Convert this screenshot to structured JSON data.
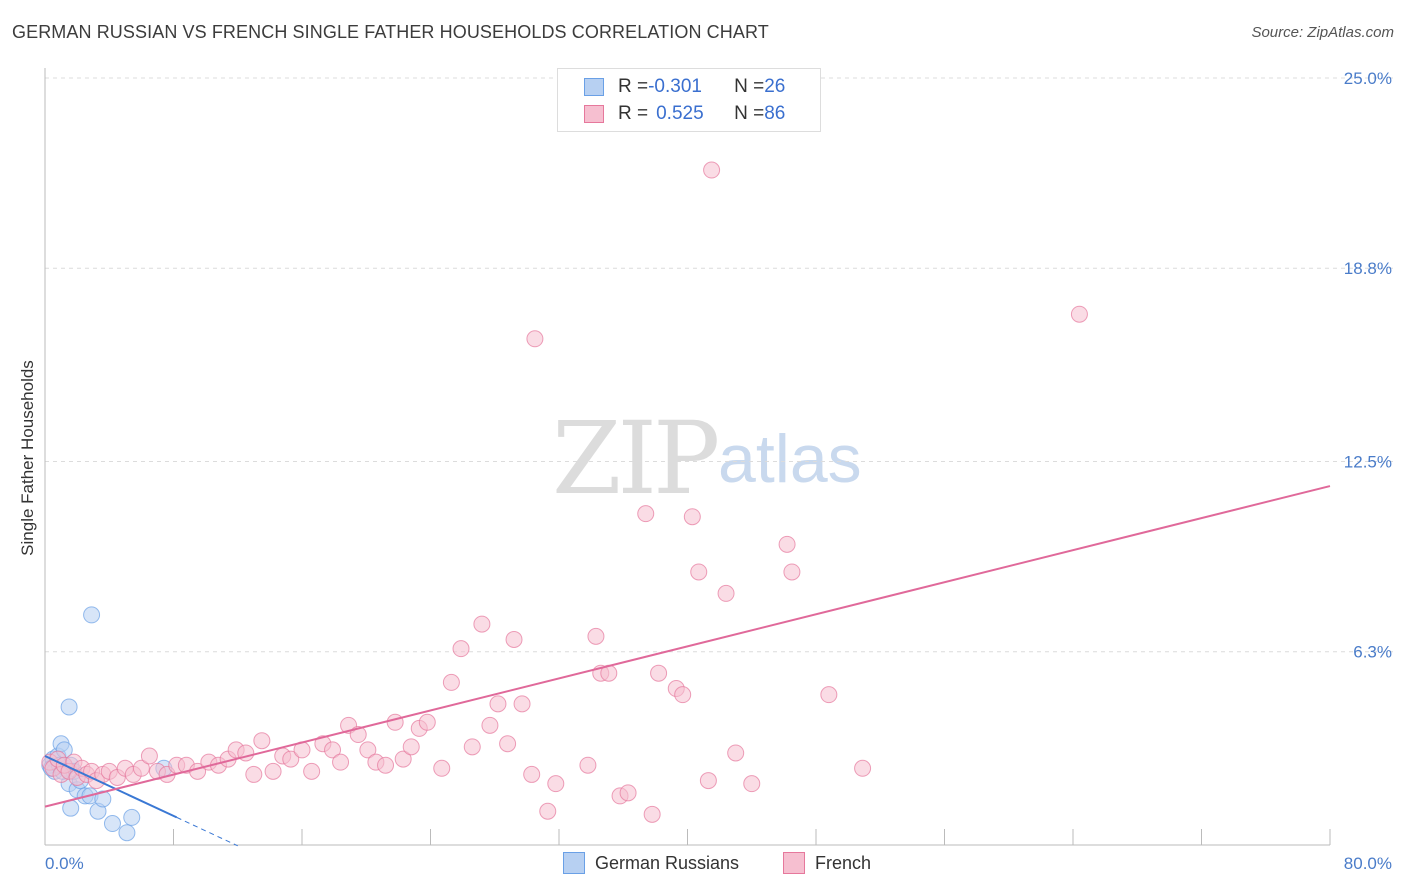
{
  "chart_data": {
    "type": "scatter",
    "title": "GERMAN RUSSIAN VS FRENCH SINGLE FATHER HOUSEHOLDS CORRELATION CHART",
    "source": "Source: ZipAtlas.com",
    "xlabel": "",
    "ylabel": "Single Father Households",
    "xlim": [
      0,
      80
    ],
    "ylim": [
      0,
      25
    ],
    "x_tick_labels": [
      "0.0%",
      "80.0%"
    ],
    "y_ticks": [
      6.3,
      12.5,
      18.8,
      25.0
    ],
    "y_tick_labels": [
      "6.3%",
      "12.5%",
      "18.8%",
      "25.0%"
    ],
    "grid": true,
    "watermark": {
      "zip": "ZIP",
      "atlas": "atlas"
    },
    "legend": [
      {
        "r_label": "R = ",
        "r_value": "-0.301",
        "n_label": "N = ",
        "n_value": "26"
      },
      {
        "r_label": "R = ",
        "r_value": "0.525",
        "n_label": "N = ",
        "n_value": "86"
      }
    ],
    "series": [
      {
        "name": "German Russians",
        "color": "#6aa0e6",
        "fill": "#b7d0f2",
        "trend": {
          "x0": 0.0,
          "y0": 2.9,
          "x1": 8.2,
          "y1": 0.9,
          "dash_to_x": 12.0
        },
        "points": [
          [
            0.3,
            2.6
          ],
          [
            0.5,
            2.8
          ],
          [
            0.6,
            2.4
          ],
          [
            0.8,
            2.9
          ],
          [
            1.0,
            3.3
          ],
          [
            1.2,
            3.1
          ],
          [
            1.3,
            2.5
          ],
          [
            1.5,
            2.0
          ],
          [
            1.6,
            2.6
          ],
          [
            1.8,
            2.4
          ],
          [
            2.0,
            1.8
          ],
          [
            2.2,
            2.1
          ],
          [
            2.5,
            1.6
          ],
          [
            2.8,
            1.6
          ],
          [
            3.3,
            1.1
          ],
          [
            3.6,
            1.5
          ],
          [
            4.2,
            0.7
          ],
          [
            5.1,
            0.4
          ],
          [
            5.4,
            0.9
          ],
          [
            7.4,
            2.5
          ],
          [
            1.6,
            1.2
          ],
          [
            0.4,
            2.5
          ],
          [
            0.9,
            2.6
          ],
          [
            1.1,
            2.4
          ],
          [
            2.9,
            7.5
          ],
          [
            1.5,
            4.5
          ]
        ]
      },
      {
        "name": "French",
        "color": "#e6789c",
        "fill": "#f6bfd0",
        "trend": {
          "x0": 0.0,
          "y0": 1.25,
          "x1": 80.0,
          "y1": 11.7
        },
        "points": [
          [
            0.3,
            2.7
          ],
          [
            0.5,
            2.5
          ],
          [
            0.8,
            2.8
          ],
          [
            1.0,
            2.3
          ],
          [
            1.2,
            2.6
          ],
          [
            1.5,
            2.4
          ],
          [
            1.8,
            2.7
          ],
          [
            2.0,
            2.2
          ],
          [
            2.3,
            2.5
          ],
          [
            2.6,
            2.3
          ],
          [
            2.9,
            2.4
          ],
          [
            3.2,
            2.1
          ],
          [
            3.6,
            2.3
          ],
          [
            4.0,
            2.4
          ],
          [
            4.5,
            2.2
          ],
          [
            5.0,
            2.5
          ],
          [
            5.5,
            2.3
          ],
          [
            6.0,
            2.5
          ],
          [
            6.5,
            2.9
          ],
          [
            7.0,
            2.4
          ],
          [
            7.6,
            2.3
          ],
          [
            8.2,
            2.6
          ],
          [
            8.8,
            2.6
          ],
          [
            9.5,
            2.4
          ],
          [
            10.2,
            2.7
          ],
          [
            10.8,
            2.6
          ],
          [
            11.4,
            2.8
          ],
          [
            11.9,
            3.1
          ],
          [
            12.5,
            3.0
          ],
          [
            13.0,
            2.3
          ],
          [
            13.5,
            3.4
          ],
          [
            14.2,
            2.4
          ],
          [
            14.8,
            2.9
          ],
          [
            15.3,
            2.8
          ],
          [
            16.0,
            3.1
          ],
          [
            16.6,
            2.4
          ],
          [
            17.3,
            3.3
          ],
          [
            17.9,
            3.1
          ],
          [
            18.4,
            2.7
          ],
          [
            18.9,
            3.9
          ],
          [
            19.5,
            3.6
          ],
          [
            20.1,
            3.1
          ],
          [
            20.6,
            2.7
          ],
          [
            21.2,
            2.6
          ],
          [
            21.8,
            4.0
          ],
          [
            22.3,
            2.8
          ],
          [
            22.8,
            3.2
          ],
          [
            23.3,
            3.8
          ],
          [
            23.8,
            4.0
          ],
          [
            24.7,
            2.5
          ],
          [
            25.3,
            5.3
          ],
          [
            25.9,
            6.4
          ],
          [
            26.6,
            3.2
          ],
          [
            27.2,
            7.2
          ],
          [
            27.7,
            3.9
          ],
          [
            28.2,
            4.6
          ],
          [
            28.8,
            3.3
          ],
          [
            29.2,
            6.7
          ],
          [
            29.7,
            4.6
          ],
          [
            30.3,
            2.3
          ],
          [
            31.3,
            1.1
          ],
          [
            31.8,
            2.0
          ],
          [
            33.8,
            2.6
          ],
          [
            34.3,
            6.8
          ],
          [
            34.6,
            5.6
          ],
          [
            35.1,
            5.6
          ],
          [
            35.8,
            1.6
          ],
          [
            36.3,
            1.7
          ],
          [
            37.4,
            10.8
          ],
          [
            37.8,
            1.0
          ],
          [
            38.2,
            5.6
          ],
          [
            39.3,
            5.1
          ],
          [
            39.7,
            4.9
          ],
          [
            40.3,
            10.7
          ],
          [
            40.7,
            8.9
          ],
          [
            42.4,
            8.2
          ],
          [
            41.3,
            2.1
          ],
          [
            43.0,
            3.0
          ],
          [
            44.0,
            2.0
          ],
          [
            46.2,
            9.8
          ],
          [
            46.5,
            8.9
          ],
          [
            48.8,
            4.9
          ],
          [
            50.9,
            2.5
          ],
          [
            41.5,
            22.0
          ],
          [
            30.5,
            16.5
          ],
          [
            64.4,
            17.3
          ]
        ]
      }
    ]
  }
}
